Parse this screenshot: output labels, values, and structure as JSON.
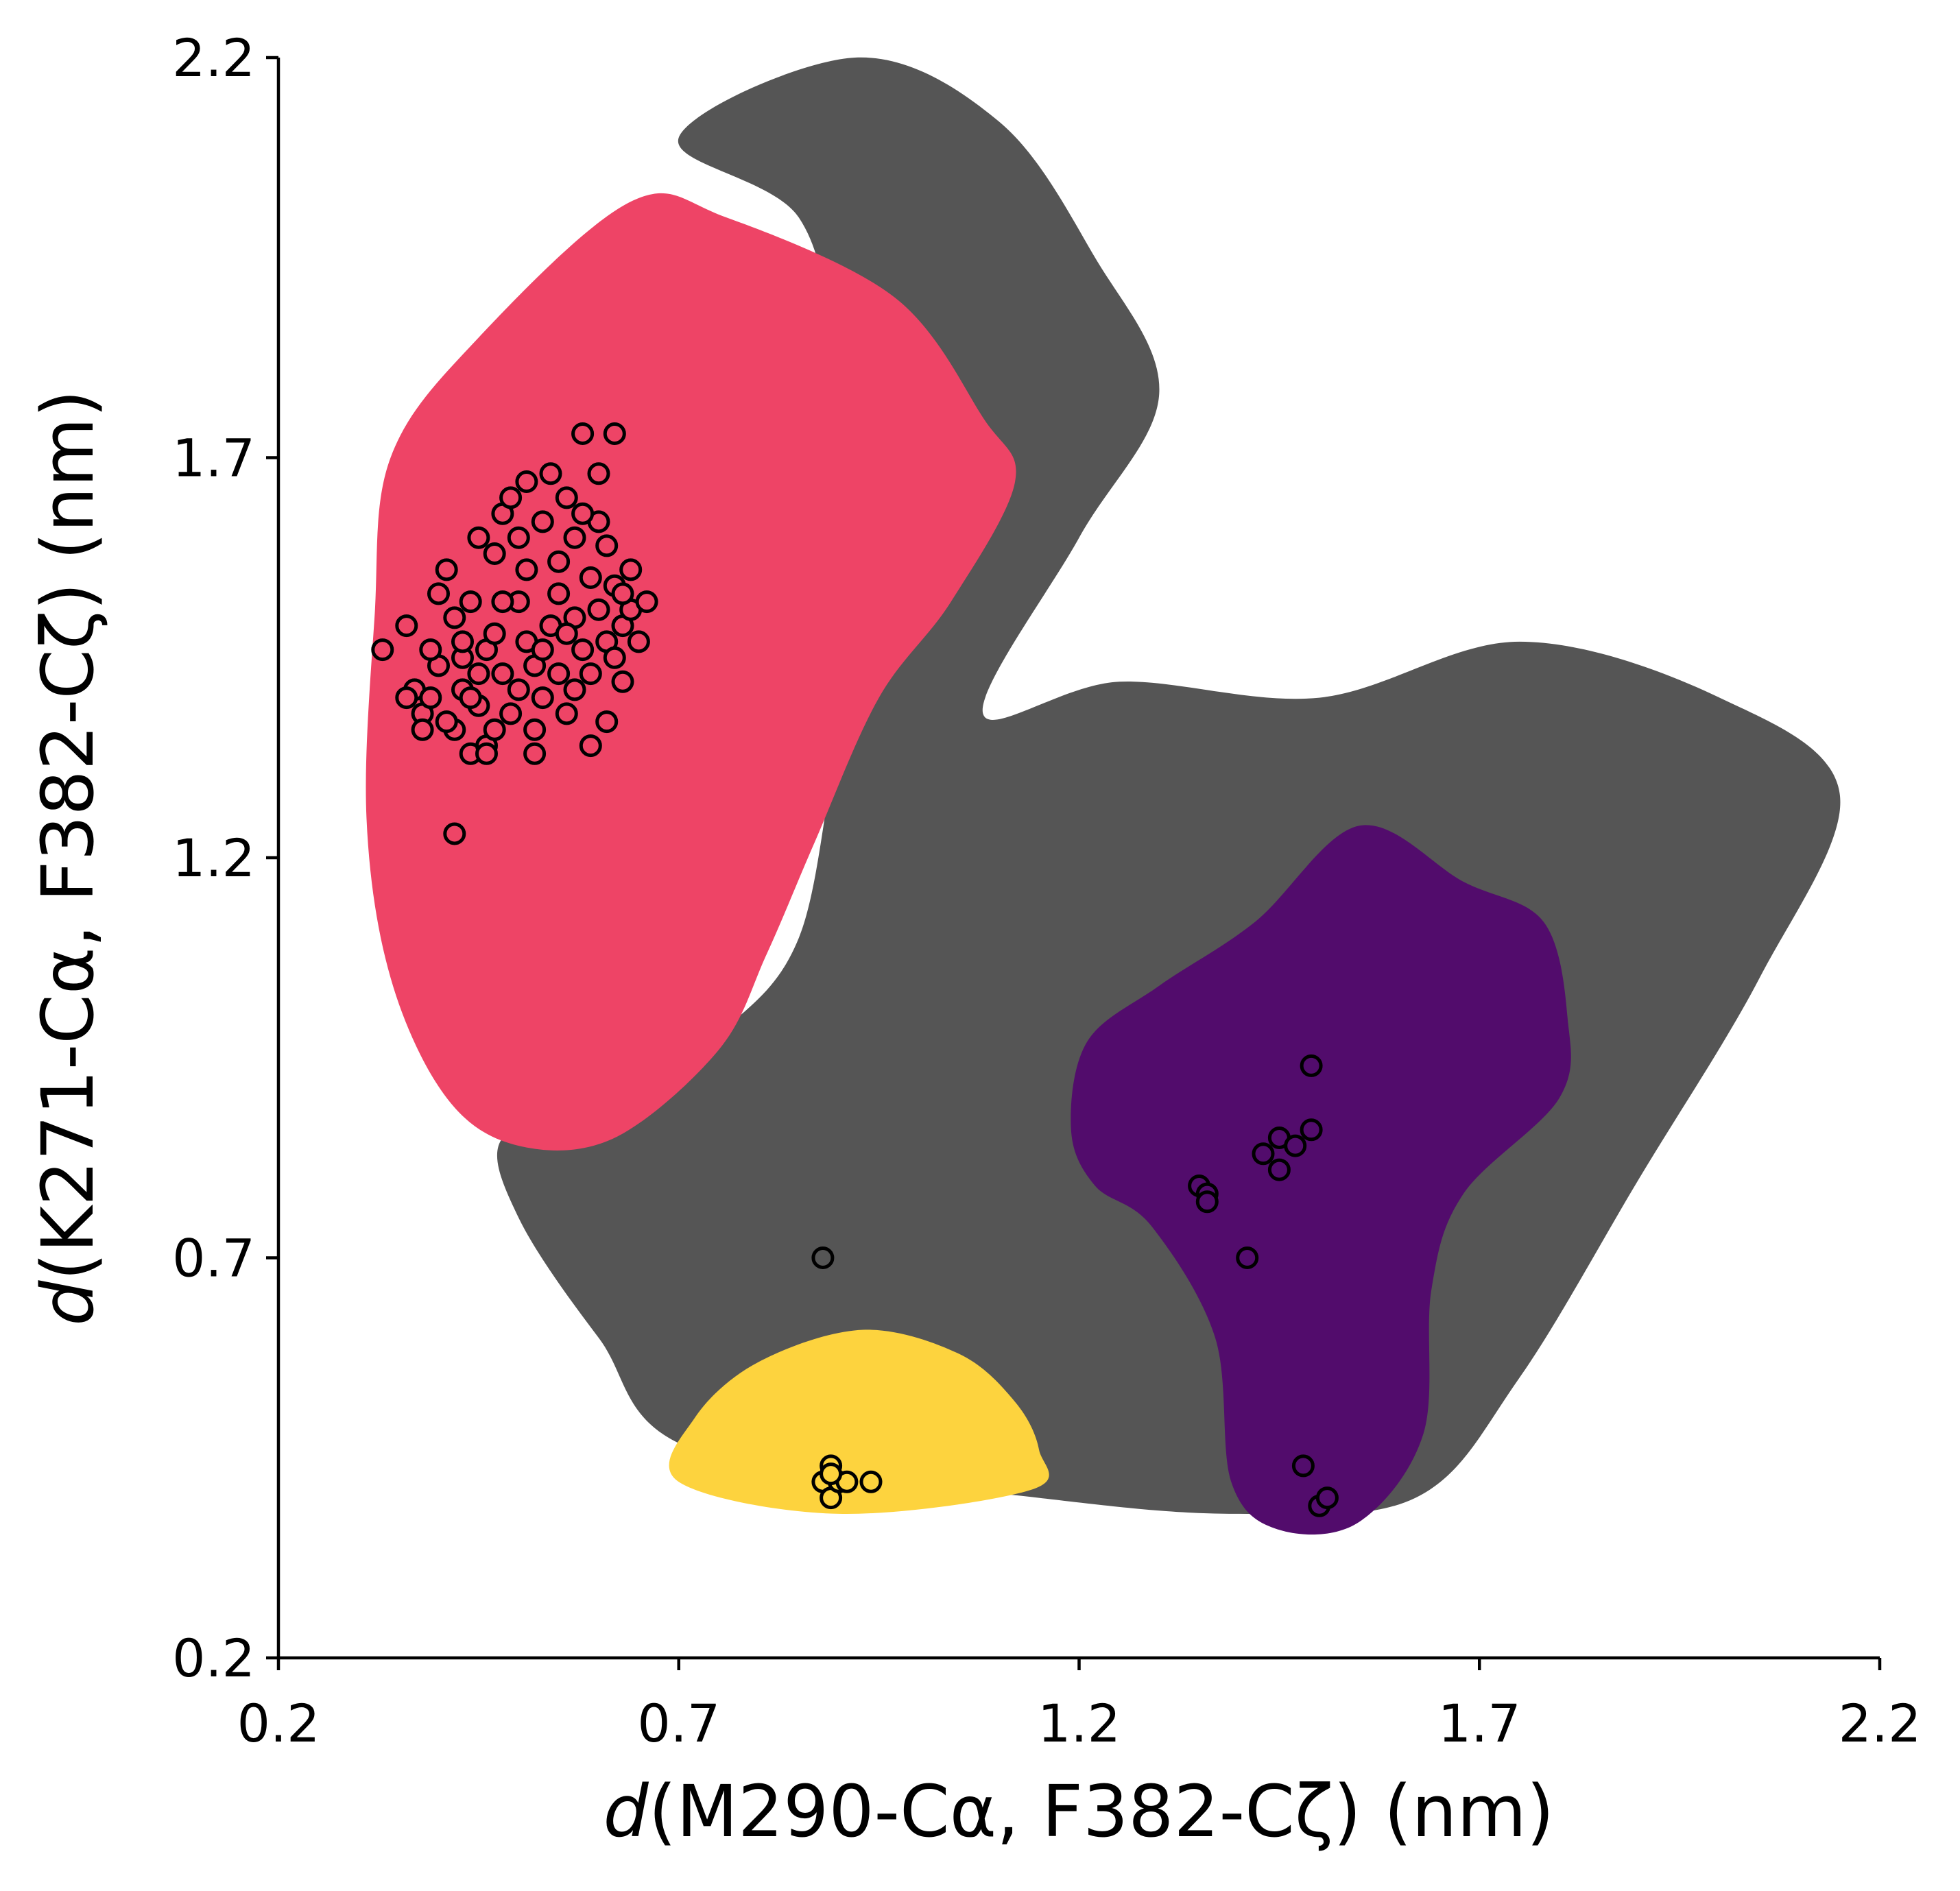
{
  "chart_data": {
    "type": "scatter",
    "title": "",
    "xlabel": {
      "var": "d",
      "text": "(M290-Cα, F382-Cζ) (nm)"
    },
    "ylabel": {
      "var": "d",
      "text": "(K271-Cα, F382-Cζ) (nm)"
    },
    "xlim": [
      0.2,
      2.2
    ],
    "ylim": [
      0.2,
      2.2
    ],
    "xticks": [
      "0.2",
      "0.7",
      "1.2",
      "1.7",
      "2.2"
    ],
    "yticks": [
      "0.2",
      "0.7",
      "1.2",
      "1.7",
      "2.2"
    ],
    "grid": false,
    "legend": "none",
    "colors": {
      "background_cloud": "#555555",
      "cluster_red": "#ee4466",
      "cluster_purple": "#520c6c",
      "cluster_yellow": "#fdd33e",
      "marker_edge": "#000000"
    },
    "regions": [
      {
        "color": "#555555",
        "boundary": [
          [
            0.92,
            2.2
          ],
          [
            1.1,
            2.12
          ],
          [
            1.22,
            1.95
          ],
          [
            1.3,
            1.78
          ],
          [
            1.2,
            1.6
          ],
          [
            1.08,
            1.38
          ],
          [
            1.25,
            1.42
          ],
          [
            1.5,
            1.4
          ],
          [
            1.75,
            1.47
          ],
          [
            2.0,
            1.4
          ],
          [
            2.15,
            1.28
          ],
          [
            2.05,
            1.05
          ],
          [
            1.9,
            0.8
          ],
          [
            1.75,
            0.55
          ],
          [
            1.62,
            0.4
          ],
          [
            1.4,
            0.38
          ],
          [
            1.15,
            0.4
          ],
          [
            0.72,
            0.46
          ],
          [
            0.6,
            0.6
          ],
          [
            0.5,
            0.75
          ],
          [
            0.48,
            0.85
          ],
          [
            0.6,
            0.88
          ],
          [
            0.75,
            0.98
          ],
          [
            0.85,
            1.1
          ],
          [
            0.9,
            1.35
          ],
          [
            0.95,
            1.5
          ],
          [
            0.9,
            1.8
          ],
          [
            0.85,
            2.0
          ],
          [
            0.7,
            2.1
          ]
        ]
      },
      {
        "color": "#ee4466",
        "boundary": [
          [
            0.64,
            2.02
          ],
          [
            0.76,
            2.0
          ],
          [
            0.97,
            1.9
          ],
          [
            1.08,
            1.75
          ],
          [
            1.12,
            1.67
          ],
          [
            1.04,
            1.52
          ],
          [
            0.95,
            1.4
          ],
          [
            0.87,
            1.22
          ],
          [
            0.81,
            1.08
          ],
          [
            0.75,
            0.96
          ],
          [
            0.62,
            0.85
          ],
          [
            0.5,
            0.84
          ],
          [
            0.41,
            0.9
          ],
          [
            0.34,
            1.05
          ],
          [
            0.31,
            1.25
          ],
          [
            0.32,
            1.5
          ],
          [
            0.34,
            1.7
          ],
          [
            0.45,
            1.85
          ]
        ]
      },
      {
        "color": "#520c6c",
        "boundary": [
          [
            1.55,
            1.24
          ],
          [
            1.68,
            1.17
          ],
          [
            1.78,
            1.12
          ],
          [
            1.81,
            1.0
          ],
          [
            1.8,
            0.9
          ],
          [
            1.68,
            0.78
          ],
          [
            1.64,
            0.66
          ],
          [
            1.63,
            0.48
          ],
          [
            1.55,
            0.37
          ],
          [
            1.45,
            0.36
          ],
          [
            1.39,
            0.42
          ],
          [
            1.37,
            0.6
          ],
          [
            1.29,
            0.74
          ],
          [
            1.22,
            0.79
          ],
          [
            1.19,
            0.86
          ],
          [
            1.21,
            0.97
          ],
          [
            1.3,
            1.04
          ],
          [
            1.42,
            1.12
          ]
        ]
      },
      {
        "color": "#fdd33e",
        "boundary": [
          [
            0.93,
            0.61
          ],
          [
            1.05,
            0.58
          ],
          [
            1.12,
            0.52
          ],
          [
            1.15,
            0.46
          ],
          [
            1.14,
            0.41
          ],
          [
            0.9,
            0.38
          ],
          [
            0.7,
            0.42
          ],
          [
            0.72,
            0.5
          ],
          [
            0.8,
            0.57
          ]
        ]
      }
    ],
    "series": [
      {
        "color": "#ee4466",
        "points": [
          [
            0.33,
            1.46
          ],
          [
            0.36,
            1.49
          ],
          [
            0.37,
            1.41
          ],
          [
            0.38,
            1.38
          ],
          [
            0.39,
            1.4
          ],
          [
            0.4,
            1.44
          ],
          [
            0.4,
            1.53
          ],
          [
            0.41,
            1.56
          ],
          [
            0.42,
            1.5
          ],
          [
            0.42,
            1.36
          ],
          [
            0.43,
            1.41
          ],
          [
            0.43,
            1.45
          ],
          [
            0.44,
            1.33
          ],
          [
            0.44,
            1.52
          ],
          [
            0.45,
            1.6
          ],
          [
            0.45,
            1.39
          ],
          [
            0.46,
            1.46
          ],
          [
            0.46,
            1.34
          ],
          [
            0.47,
            1.58
          ],
          [
            0.47,
            1.48
          ],
          [
            0.48,
            1.63
          ],
          [
            0.48,
            1.43
          ],
          [
            0.49,
            1.38
          ],
          [
            0.49,
            1.65
          ],
          [
            0.5,
            1.52
          ],
          [
            0.5,
            1.6
          ],
          [
            0.51,
            1.47
          ],
          [
            0.51,
            1.67
          ],
          [
            0.52,
            1.44
          ],
          [
            0.52,
            1.36
          ],
          [
            0.53,
            1.62
          ],
          [
            0.53,
            1.4
          ],
          [
            0.54,
            1.68
          ],
          [
            0.54,
            1.49
          ],
          [
            0.55,
            1.53
          ],
          [
            0.55,
            1.43
          ],
          [
            0.56,
            1.65
          ],
          [
            0.56,
            1.38
          ],
          [
            0.57,
            1.5
          ],
          [
            0.57,
            1.6
          ],
          [
            0.58,
            1.46
          ],
          [
            0.58,
            1.73
          ],
          [
            0.59,
            1.55
          ],
          [
            0.59,
            1.43
          ],
          [
            0.6,
            1.68
          ],
          [
            0.6,
            1.51
          ],
          [
            0.61,
            1.59
          ],
          [
            0.61,
            1.47
          ],
          [
            0.62,
            1.73
          ],
          [
            0.62,
            1.54
          ],
          [
            0.63,
            1.42
          ],
          [
            0.63,
            1.49
          ],
          [
            0.64,
            1.51
          ],
          [
            0.64,
            1.56
          ],
          [
            0.65,
            1.47
          ],
          [
            0.66,
            1.52
          ],
          [
            0.59,
            1.34
          ],
          [
            0.61,
            1.37
          ],
          [
            0.52,
            1.33
          ],
          [
            0.46,
            1.33
          ],
          [
            0.42,
            1.23
          ],
          [
            0.38,
            1.36
          ],
          [
            0.44,
            1.4
          ],
          [
            0.5,
            1.41
          ],
          [
            0.55,
            1.57
          ],
          [
            0.57,
            1.41
          ],
          [
            0.6,
            1.62
          ],
          [
            0.62,
            1.45
          ],
          [
            0.48,
            1.52
          ],
          [
            0.53,
            1.46
          ],
          [
            0.47,
            1.36
          ],
          [
            0.41,
            1.37
          ],
          [
            0.56,
            1.48
          ],
          [
            0.58,
            1.63
          ],
          [
            0.45,
            1.43
          ],
          [
            0.51,
            1.56
          ],
          [
            0.43,
            1.47
          ],
          [
            0.63,
            1.53
          ],
          [
            0.36,
            1.4
          ],
          [
            0.39,
            1.46
          ]
        ]
      },
      {
        "color": "#520c6c",
        "points": [
          [
            1.49,
            0.94
          ],
          [
            1.43,
            0.83
          ],
          [
            1.45,
            0.85
          ],
          [
            1.47,
            0.84
          ],
          [
            1.49,
            0.86
          ],
          [
            1.45,
            0.81
          ],
          [
            1.35,
            0.79
          ],
          [
            1.36,
            0.78
          ],
          [
            1.36,
            0.77
          ],
          [
            1.41,
            0.7
          ],
          [
            1.48,
            0.44
          ],
          [
            1.5,
            0.39
          ],
          [
            1.51,
            0.4
          ]
        ]
      },
      {
        "color": "#fdd33e",
        "points": [
          [
            0.89,
            0.44
          ],
          [
            0.88,
            0.42
          ],
          [
            0.89,
            0.4
          ],
          [
            0.9,
            0.42
          ],
          [
            0.91,
            0.42
          ],
          [
            0.94,
            0.42
          ],
          [
            0.89,
            0.43
          ]
        ]
      },
      {
        "color": "#555555",
        "points": [
          [
            0.88,
            0.7
          ]
        ]
      }
    ]
  }
}
